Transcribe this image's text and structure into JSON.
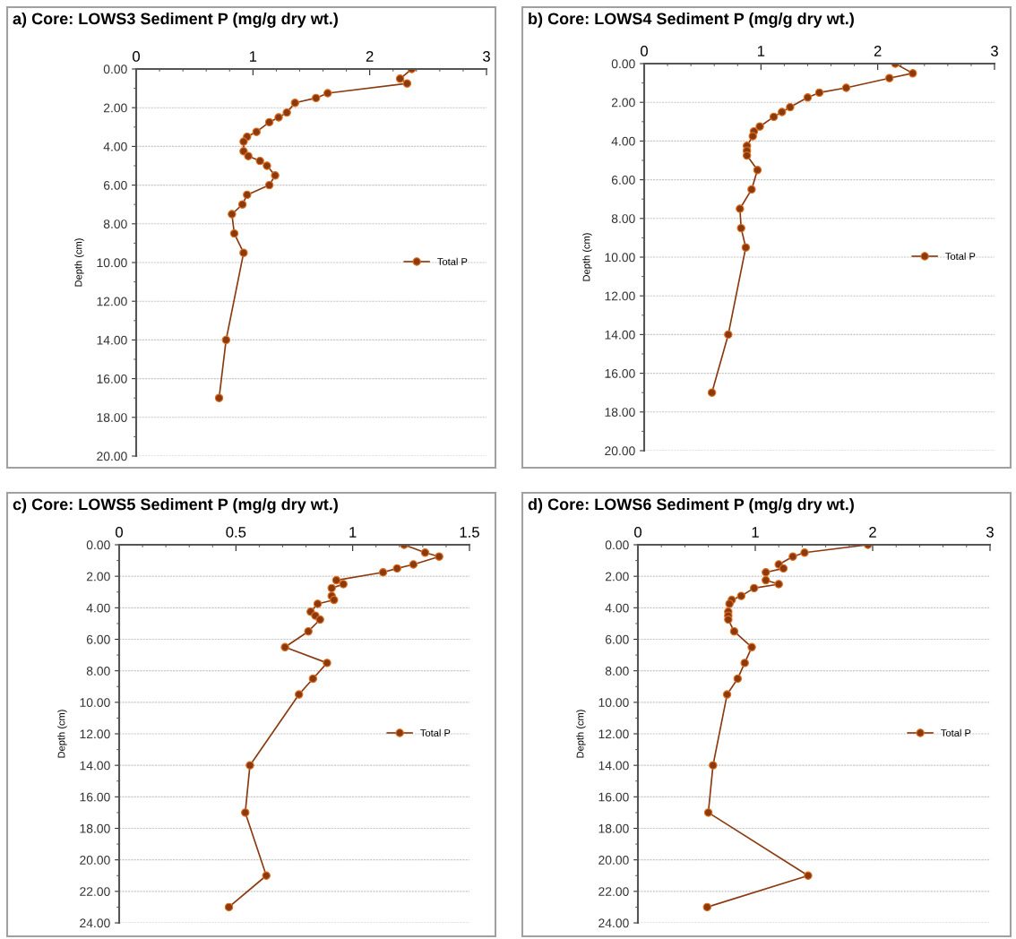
{
  "chart_data": [
    {
      "type": "line",
      "title": "a) Core: LOWS3 Sediment P (mg/g dry wt.)",
      "ylabel": "Depth (cm)",
      "xlim": [
        0,
        3
      ],
      "xticks": [
        0,
        1,
        2,
        3
      ],
      "ylim": [
        20,
        0
      ],
      "yticks": [
        {
          "value": 0,
          "label": "0.00"
        },
        {
          "value": 2,
          "label": "2.00"
        },
        {
          "value": 4,
          "label": "4.00"
        },
        {
          "value": 6,
          "label": "6.00"
        },
        {
          "value": 8,
          "label": "8.00"
        },
        {
          "value": 10,
          "label": "10.00"
        },
        {
          "value": 12,
          "label": "12.00"
        },
        {
          "value": 14,
          "label": "14.00"
        },
        {
          "value": 16,
          "label": "16.00"
        },
        {
          "value": 18,
          "label": "18.00"
        },
        {
          "value": 20,
          "label": "20.00"
        }
      ],
      "grid": "y",
      "legend": "right",
      "marker": "circle",
      "line_style": "solid",
      "series": [
        {
          "name": "Total P",
          "color": "#8b3a10",
          "x": [
            2.36,
            2.26,
            2.32,
            1.64,
            1.54,
            1.36,
            1.29,
            1.22,
            1.14,
            1.03,
            0.95,
            0.92,
            0.92,
            0.96,
            1.06,
            1.12,
            1.19,
            1.14,
            0.95,
            0.91,
            0.82,
            0.84,
            0.92,
            0.77,
            0.71
          ],
          "values": [
            0,
            0.5,
            0.75,
            1.25,
            1.5,
            1.75,
            2.25,
            2.5,
            2.75,
            3.25,
            3.5,
            3.75,
            4.25,
            4.5,
            4.75,
            5,
            5.5,
            6,
            6.5,
            7,
            7.5,
            8.5,
            9.5,
            14,
            17
          ]
        }
      ]
    },
    {
      "type": "line",
      "title": "b) Core: LOWS4 Sediment P (mg/g dry wt.)",
      "ylabel": "Depth (cm)",
      "xlim": [
        0,
        3
      ],
      "xticks": [
        0,
        1,
        2,
        3
      ],
      "ylim": [
        20,
        0
      ],
      "yticks": [
        {
          "value": 0,
          "label": "0.00"
        },
        {
          "value": 2,
          "label": "2.00"
        },
        {
          "value": 4,
          "label": "4.00"
        },
        {
          "value": 6,
          "label": "6.00"
        },
        {
          "value": 8,
          "label": "8.00"
        },
        {
          "value": 10,
          "label": "10.00"
        },
        {
          "value": 12,
          "label": "12.00"
        },
        {
          "value": 14,
          "label": "14.00"
        },
        {
          "value": 16,
          "label": "16.00"
        },
        {
          "value": 18,
          "label": "18.00"
        },
        {
          "value": 20,
          "label": "20.00"
        }
      ],
      "grid": "y",
      "legend": "right",
      "marker": "circle",
      "line_style": "solid",
      "series": [
        {
          "name": "Total P",
          "color": "#8b3a10",
          "x": [
            2.15,
            2.3,
            2.1,
            1.73,
            1.5,
            1.4,
            1.25,
            1.18,
            1.11,
            0.99,
            0.94,
            0.93,
            0.88,
            0.88,
            0.88,
            0.97,
            0.92,
            0.82,
            0.83,
            0.87,
            0.72,
            0.58
          ],
          "values": [
            0,
            0.5,
            0.75,
            1.25,
            1.5,
            1.75,
            2.25,
            2.5,
            2.75,
            3.25,
            3.5,
            3.75,
            4.25,
            4.5,
            4.75,
            5.5,
            6.5,
            7.5,
            8.5,
            9.5,
            14,
            17
          ]
        }
      ]
    },
    {
      "type": "line",
      "title": "c) Core: LOWS5 Sediment P (mg/g dry wt.)",
      "ylabel": "Depth (cm)",
      "xlim": [
        0,
        1.5
      ],
      "xticks": [
        0,
        0.5,
        1,
        1.5
      ],
      "ylim": [
        24,
        0
      ],
      "yticks": [
        {
          "value": 0,
          "label": "0.00"
        },
        {
          "value": 2,
          "label": "2.00"
        },
        {
          "value": 4,
          "label": "4.00"
        },
        {
          "value": 6,
          "label": "6.00"
        },
        {
          "value": 8,
          "label": "8.00"
        },
        {
          "value": 10,
          "label": "10.00"
        },
        {
          "value": 12,
          "label": "12.00"
        },
        {
          "value": 14,
          "label": "14.00"
        },
        {
          "value": 16,
          "label": "16.00"
        },
        {
          "value": 18,
          "label": "18.00"
        },
        {
          "value": 20,
          "label": "20.00"
        },
        {
          "value": 22,
          "label": "22.00"
        },
        {
          "value": 24,
          "label": "24.00"
        }
      ],
      "grid": "y",
      "legend": "right",
      "marker": "circle",
      "line_style": "solid",
      "series": [
        {
          "name": "Total P",
          "color": "#8b3a10",
          "x": [
            1.22,
            1.31,
            1.37,
            1.26,
            1.19,
            1.13,
            0.93,
            0.96,
            0.91,
            0.91,
            0.92,
            0.85,
            0.82,
            0.84,
            0.86,
            0.81,
            0.71,
            0.89,
            0.83,
            0.77,
            0.56,
            0.54,
            0.63,
            0.47
          ],
          "values": [
            0,
            0.5,
            0.75,
            1.25,
            1.5,
            1.75,
            2.25,
            2.5,
            2.75,
            3.25,
            3.5,
            3.75,
            4.25,
            4.5,
            4.75,
            5.5,
            6.5,
            7.5,
            8.5,
            9.5,
            14,
            17,
            21,
            23
          ]
        }
      ]
    },
    {
      "type": "line",
      "title": "d) Core: LOWS6 Sediment P (mg/g dry wt.)",
      "ylabel": "Depth (cm)",
      "xlim": [
        0,
        3
      ],
      "xticks": [
        0,
        1,
        2,
        3
      ],
      "ylim": [
        24,
        0
      ],
      "yticks": [
        {
          "value": 0,
          "label": "0.00"
        },
        {
          "value": 2,
          "label": "2.00"
        },
        {
          "value": 4,
          "label": "4.00"
        },
        {
          "value": 6,
          "label": "6.00"
        },
        {
          "value": 8,
          "label": "8.00"
        },
        {
          "value": 10,
          "label": "10.00"
        },
        {
          "value": 12,
          "label": "12.00"
        },
        {
          "value": 14,
          "label": "14.00"
        },
        {
          "value": 16,
          "label": "16.00"
        },
        {
          "value": 18,
          "label": "18.00"
        },
        {
          "value": 20,
          "label": "20.00"
        },
        {
          "value": 22,
          "label": "22.00"
        },
        {
          "value": 24,
          "label": "24.00"
        }
      ],
      "grid": "y",
      "legend": "right",
      "marker": "circle",
      "line_style": "solid",
      "series": [
        {
          "name": "Total P",
          "color": "#8b3a10",
          "x": [
            1.96,
            1.42,
            1.32,
            1.2,
            1.24,
            1.09,
            1.09,
            1.2,
            0.99,
            0.88,
            0.8,
            0.78,
            0.77,
            0.77,
            0.77,
            0.82,
            0.97,
            0.91,
            0.85,
            0.76,
            0.64,
            0.6,
            1.45,
            0.59
          ],
          "values": [
            0,
            0.5,
            0.75,
            1.25,
            1.5,
            1.75,
            2.25,
            2.5,
            2.75,
            3.25,
            3.5,
            3.75,
            4.25,
            4.5,
            4.75,
            5.5,
            6.5,
            7.5,
            8.5,
            9.5,
            14,
            17,
            21,
            23
          ]
        }
      ]
    }
  ]
}
